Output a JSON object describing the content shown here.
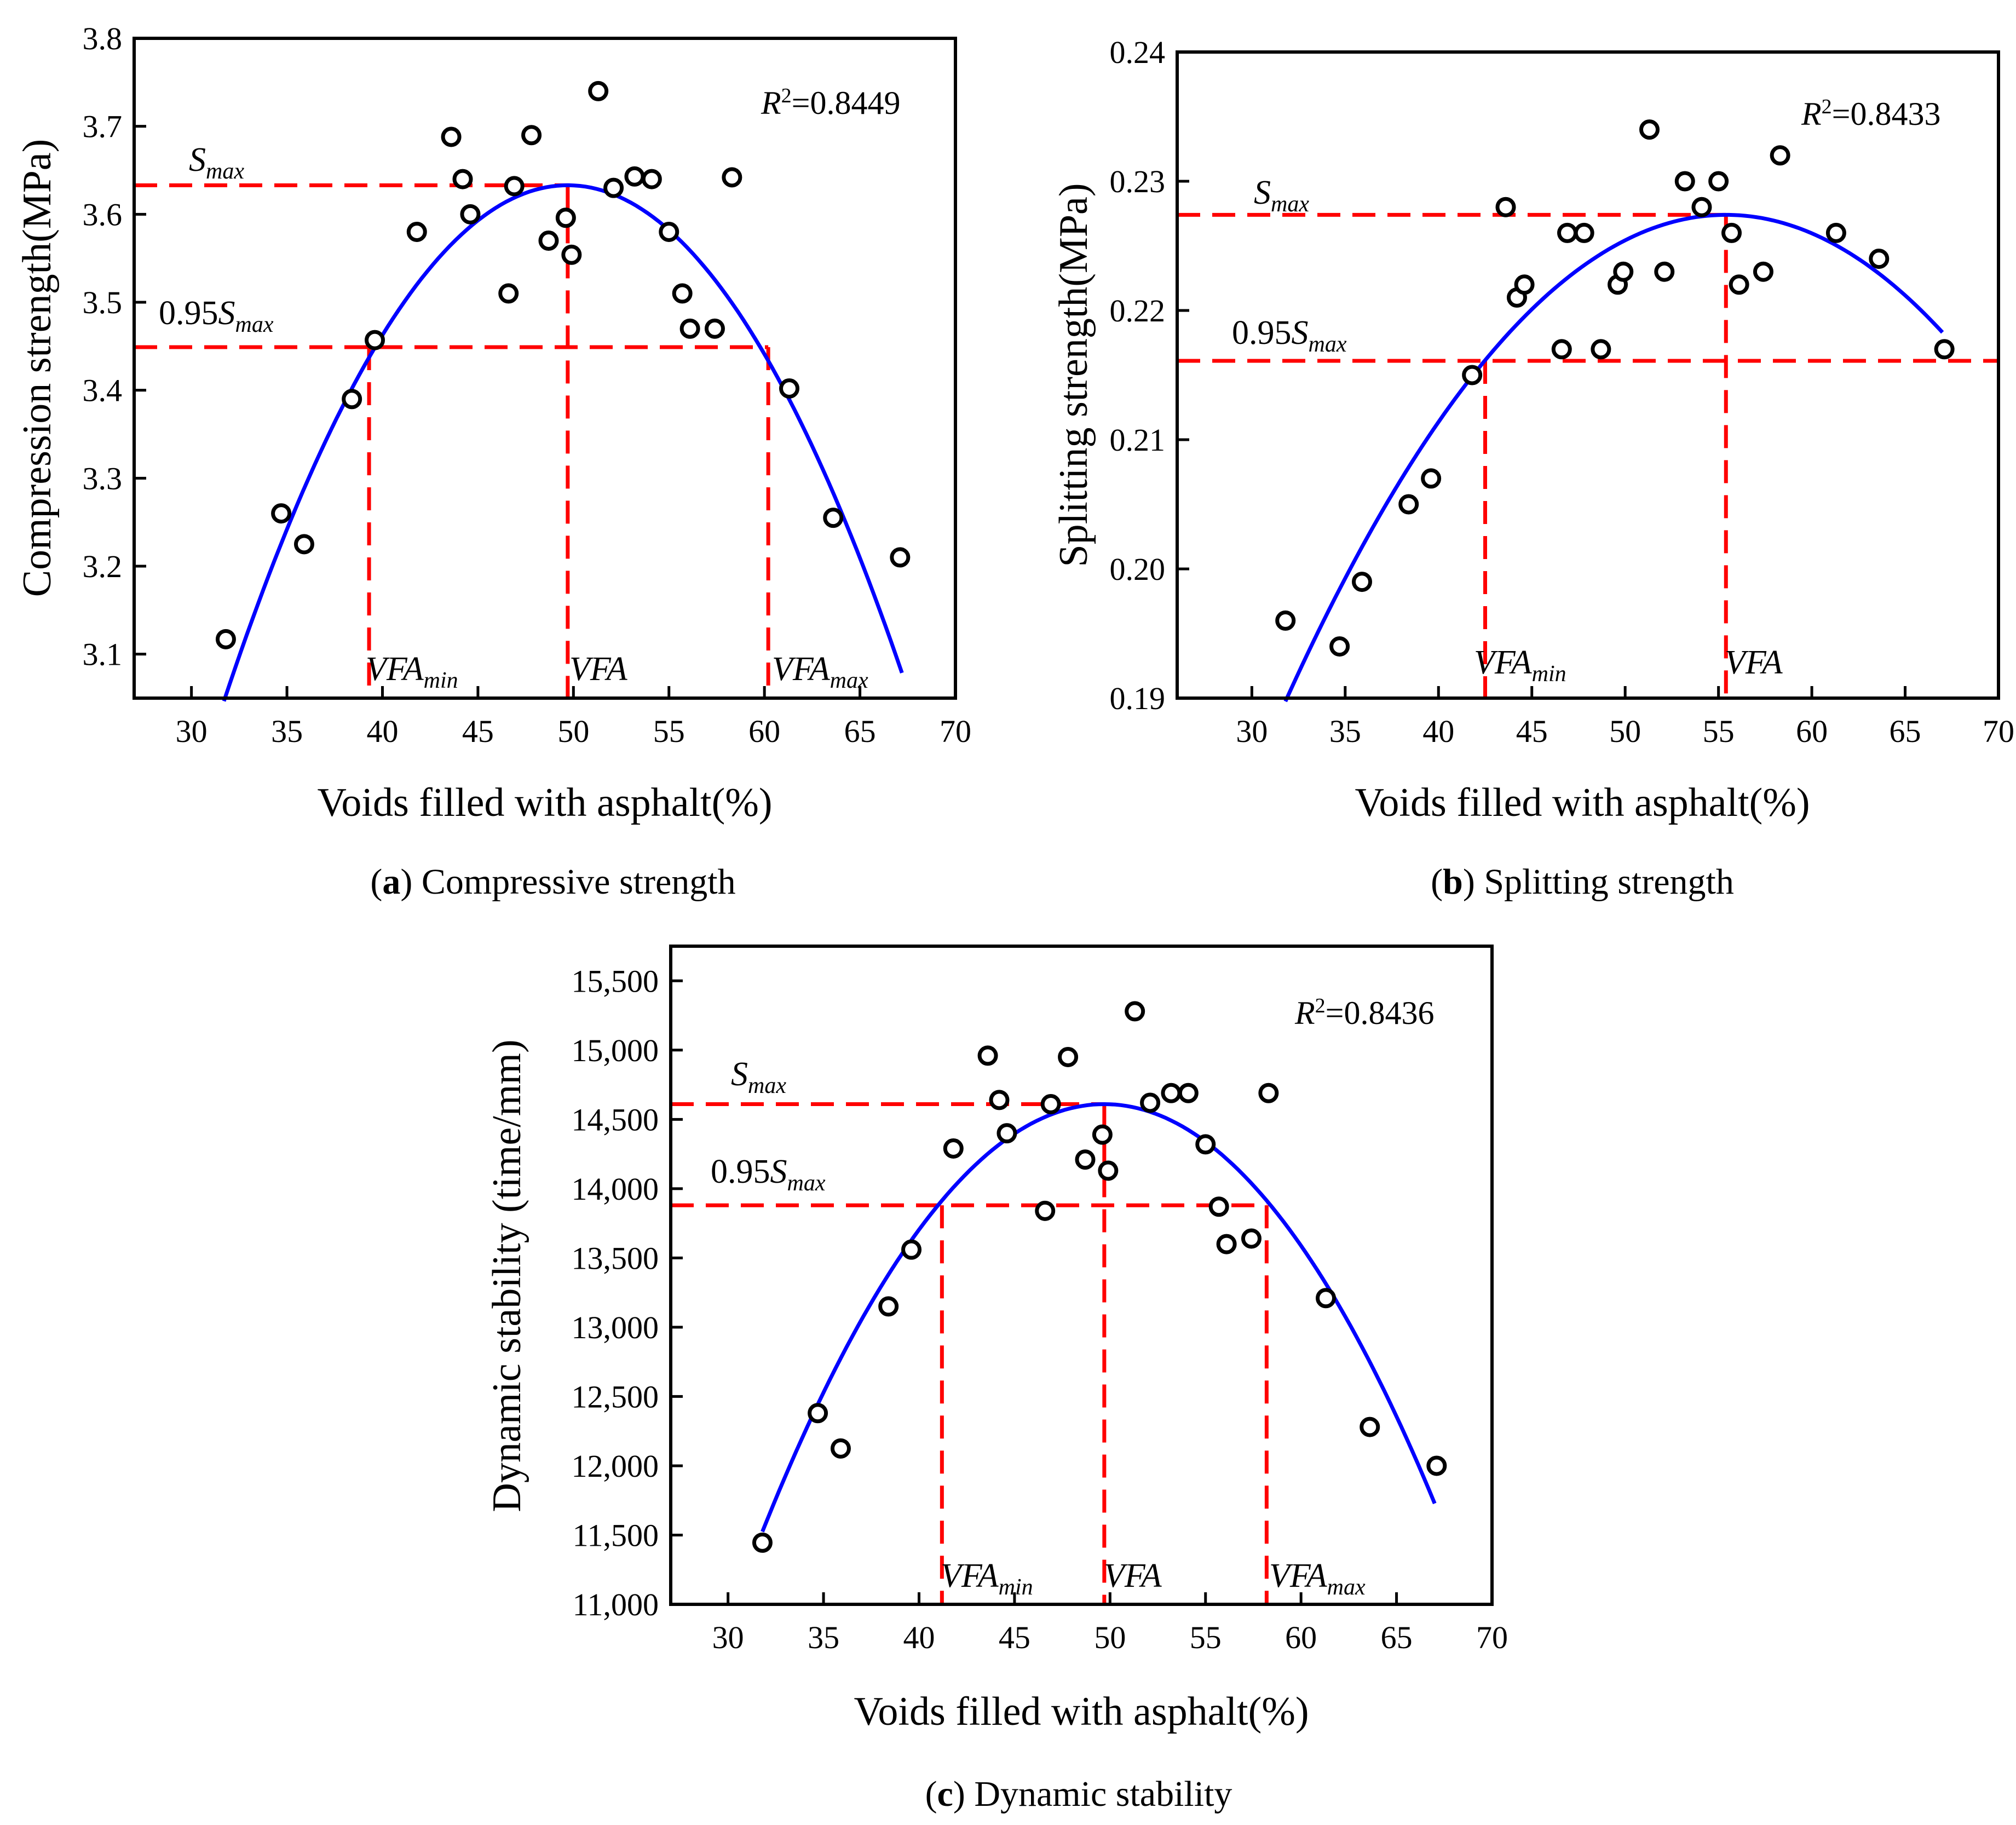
{
  "chart_data": [
    {
      "type": "scatter",
      "panel_letter": "a",
      "caption": "Compressive strength",
      "xlabel": "Voids filled with asphalt(%)",
      "ylabel": "Compression strength(MPa)",
      "xlim": [
        27,
        70
      ],
      "ylim": [
        3.05,
        3.8
      ],
      "xticks": [
        30,
        35,
        40,
        45,
        50,
        55,
        60,
        65,
        70
      ],
      "xtick_labels": [
        "30",
        "35",
        "40",
        "45",
        "50",
        "55",
        "60",
        "65",
        "70"
      ],
      "yticks": [
        3.1,
        3.2,
        3.3,
        3.4,
        3.5,
        3.6,
        3.7,
        3.8
      ],
      "ytick_labels": [
        "3.1",
        "3.2",
        "3.3",
        "3.4",
        "3.5",
        "3.6",
        "3.7",
        "3.8"
      ],
      "r2_label": "=0.8449",
      "points": [
        {
          "x": 31.8,
          "y": 3.117
        },
        {
          "x": 34.7,
          "y": 3.26
        },
        {
          "x": 35.9,
          "y": 3.225
        },
        {
          "x": 38.4,
          "y": 3.39
        },
        {
          "x": 39.6,
          "y": 3.457
        },
        {
          "x": 41.8,
          "y": 3.58
        },
        {
          "x": 43.6,
          "y": 3.688
        },
        {
          "x": 44.2,
          "y": 3.64
        },
        {
          "x": 44.6,
          "y": 3.6
        },
        {
          "x": 46.6,
          "y": 3.51
        },
        {
          "x": 46.9,
          "y": 3.632
        },
        {
          "x": 47.8,
          "y": 3.69
        },
        {
          "x": 48.7,
          "y": 3.57
        },
        {
          "x": 49.6,
          "y": 3.596
        },
        {
          "x": 49.9,
          "y": 3.554
        },
        {
          "x": 51.3,
          "y": 3.74
        },
        {
          "x": 52.1,
          "y": 3.63
        },
        {
          "x": 53.2,
          "y": 3.643
        },
        {
          "x": 54.1,
          "y": 3.64
        },
        {
          "x": 55.0,
          "y": 3.58
        },
        {
          "x": 55.7,
          "y": 3.51
        },
        {
          "x": 56.1,
          "y": 3.47
        },
        {
          "x": 57.4,
          "y": 3.47
        },
        {
          "x": 58.3,
          "y": 3.642
        },
        {
          "x": 61.3,
          "y": 3.402
        },
        {
          "x": 63.6,
          "y": 3.255
        },
        {
          "x": 67.1,
          "y": 3.21
        }
      ],
      "fit": {
        "vertex_x": 49.7,
        "vertex_y": 3.633,
        "a": -0.00181,
        "x_range": [
          31.7,
          67.2
        ]
      },
      "s_max": 3.633,
      "s95": 3.449,
      "vfa_min": 39.3,
      "vfa": 49.7,
      "vfa_max": 60.2,
      "labels": {
        "smax": "max",
        "s95_prefix": "0.95",
        "s95_sub": "max",
        "vfa_min_sub": "min",
        "vfa": "VFA",
        "vfa_max_sub": "max"
      }
    },
    {
      "type": "scatter",
      "panel_letter": "b",
      "caption": "Splitting strength",
      "xlabel": "Voids filled with asphalt(%)",
      "ylabel": "Splitting strength(MPa)",
      "xlim": [
        26,
        70
      ],
      "ylim": [
        0.19,
        0.24
      ],
      "xticks": [
        30,
        35,
        40,
        45,
        50,
        55,
        60,
        65,
        70
      ],
      "xtick_labels": [
        "30",
        "35",
        "40",
        "45",
        "50",
        "55",
        "60",
        "65",
        "70"
      ],
      "yticks": [
        0.19,
        0.2,
        0.21,
        0.22,
        0.23,
        0.24
      ],
      "ytick_labels": [
        "0.19",
        "0.20",
        "0.21",
        "0.22",
        "0.23",
        "0.24"
      ],
      "r2_label": "=0.8433",
      "points": [
        {
          "x": 31.8,
          "y": 0.196
        },
        {
          "x": 34.7,
          "y": 0.194
        },
        {
          "x": 35.9,
          "y": 0.199
        },
        {
          "x": 38.4,
          "y": 0.205
        },
        {
          "x": 39.6,
          "y": 0.207
        },
        {
          "x": 41.8,
          "y": 0.215
        },
        {
          "x": 43.6,
          "y": 0.228
        },
        {
          "x": 44.2,
          "y": 0.221
        },
        {
          "x": 44.6,
          "y": 0.222
        },
        {
          "x": 46.6,
          "y": 0.217
        },
        {
          "x": 46.9,
          "y": 0.226
        },
        {
          "x": 47.8,
          "y": 0.226
        },
        {
          "x": 48.7,
          "y": 0.217
        },
        {
          "x": 49.6,
          "y": 0.222
        },
        {
          "x": 49.9,
          "y": 0.223
        },
        {
          "x": 51.3,
          "y": 0.234
        },
        {
          "x": 52.1,
          "y": 0.223
        },
        {
          "x": 53.2,
          "y": 0.23
        },
        {
          "x": 54.1,
          "y": 0.228
        },
        {
          "x": 55.0,
          "y": 0.23
        },
        {
          "x": 55.7,
          "y": 0.226
        },
        {
          "x": 56.1,
          "y": 0.222
        },
        {
          "x": 57.4,
          "y": 0.223
        },
        {
          "x": 58.3,
          "y": 0.232
        },
        {
          "x": 61.3,
          "y": 0.226
        },
        {
          "x": 63.6,
          "y": 0.224
        },
        {
          "x": 67.1,
          "y": 0.217
        }
      ],
      "fit": {
        "vertex_x": 55.4,
        "vertex_y": 0.2274,
        "a": -6.76e-05,
        "x_range": [
          31.8,
          67.0
        ]
      },
      "s_max": 0.2274,
      "s95": 0.2161,
      "vfa_min": 42.5,
      "vfa": 55.4,
      "labels": {
        "smax": "max",
        "s95_prefix": "0.95",
        "s95_sub": "max",
        "vfa_min_sub": "min",
        "vfa": "VFA"
      }
    },
    {
      "type": "scatter",
      "panel_letter": "c",
      "caption": "Dynamic stability",
      "xlabel": "Voids filled with asphalt(%)",
      "ylabel": "Dynamic stability (time/mm)",
      "xlim": [
        27,
        70
      ],
      "ylim": [
        11000,
        15750
      ],
      "xticks": [
        30,
        35,
        40,
        45,
        50,
        55,
        60,
        65,
        70
      ],
      "xtick_labels": [
        "30",
        "35",
        "40",
        "45",
        "50",
        "55",
        "60",
        "65",
        "70"
      ],
      "yticks": [
        11000,
        11500,
        12000,
        12500,
        13000,
        13500,
        14000,
        14500,
        15000,
        15500
      ],
      "ytick_labels": [
        "11,000",
        "11,500",
        "12,000",
        "12,500",
        "13,000",
        "13,500",
        "14,000",
        "14,500",
        "15,000",
        "15,500"
      ],
      "r2_label": "=0.8436",
      "points": [
        {
          "x": 31.8,
          "y": 11445
        },
        {
          "x": 34.7,
          "y": 12380
        },
        {
          "x": 35.9,
          "y": 12125
        },
        {
          "x": 38.4,
          "y": 13150
        },
        {
          "x": 39.6,
          "y": 13560
        },
        {
          "x": 41.8,
          "y": 14290
        },
        {
          "x": 43.6,
          "y": 14960
        },
        {
          "x": 44.2,
          "y": 14640
        },
        {
          "x": 44.6,
          "y": 14400
        },
        {
          "x": 46.6,
          "y": 13840
        },
        {
          "x": 46.9,
          "y": 14610
        },
        {
          "x": 47.8,
          "y": 14950
        },
        {
          "x": 48.7,
          "y": 14210
        },
        {
          "x": 49.6,
          "y": 14390
        },
        {
          "x": 49.9,
          "y": 14130
        },
        {
          "x": 51.3,
          "y": 15280
        },
        {
          "x": 52.1,
          "y": 14620
        },
        {
          "x": 53.2,
          "y": 14690
        },
        {
          "x": 54.1,
          "y": 14690
        },
        {
          "x": 55.0,
          "y": 14320
        },
        {
          "x": 55.7,
          "y": 13870
        },
        {
          "x": 56.1,
          "y": 13600
        },
        {
          "x": 57.4,
          "y": 13640
        },
        {
          "x": 58.3,
          "y": 14690
        },
        {
          "x": 61.3,
          "y": 13210
        },
        {
          "x": 63.6,
          "y": 12280
        },
        {
          "x": 67.1,
          "y": 12000
        }
      ],
      "fit": {
        "vertex_x": 49.7,
        "vertex_y": 14610,
        "a": -9.63,
        "x_range": [
          31.8,
          67.0
        ]
      },
      "s_max": 14610,
      "s95": 13880,
      "vfa_min": 41.2,
      "vfa": 49.7,
      "vfa_max": 58.2,
      "labels": {
        "smax": "max",
        "s95_prefix": "0.95",
        "s95_sub": "max",
        "vfa_min_sub": "min",
        "vfa": "VFA",
        "vfa_max_sub": "max"
      }
    }
  ]
}
